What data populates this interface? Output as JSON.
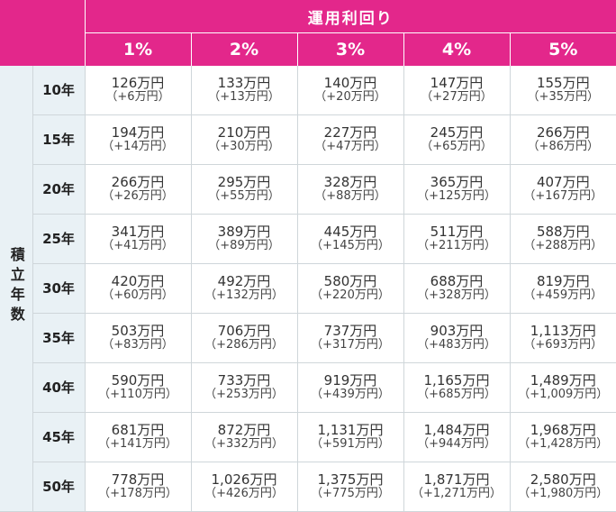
{
  "header": {
    "title": "運用利回り",
    "rates": [
      "1%",
      "2%",
      "3%",
      "4%",
      "5%"
    ]
  },
  "side_label": "積立年数",
  "rows": [
    {
      "year": "10年",
      "cells": [
        {
          "amount": "126万円",
          "gain": "（+6万円）"
        },
        {
          "amount": "133万円",
          "gain": "（+13万円）"
        },
        {
          "amount": "140万円",
          "gain": "（+20万円）"
        },
        {
          "amount": "147万円",
          "gain": "（+27万円）"
        },
        {
          "amount": "155万円",
          "gain": "（+35万円）"
        }
      ]
    },
    {
      "year": "15年",
      "cells": [
        {
          "amount": "194万円",
          "gain": "（+14万円）"
        },
        {
          "amount": "210万円",
          "gain": "（+30万円）"
        },
        {
          "amount": "227万円",
          "gain": "（+47万円）"
        },
        {
          "amount": "245万円",
          "gain": "（+65万円）"
        },
        {
          "amount": "266万円",
          "gain": "（+86万円）"
        }
      ]
    },
    {
      "year": "20年",
      "cells": [
        {
          "amount": "266万円",
          "gain": "（+26万円）"
        },
        {
          "amount": "295万円",
          "gain": "（+55万円）"
        },
        {
          "amount": "328万円",
          "gain": "（+88万円）"
        },
        {
          "amount": "365万円",
          "gain": "（+125万円）"
        },
        {
          "amount": "407万円",
          "gain": "（+167万円）"
        }
      ]
    },
    {
      "year": "25年",
      "cells": [
        {
          "amount": "341万円",
          "gain": "（+41万円）"
        },
        {
          "amount": "389万円",
          "gain": "（+89万円）"
        },
        {
          "amount": "445万円",
          "gain": "（+145万円）"
        },
        {
          "amount": "511万円",
          "gain": "（+211万円）"
        },
        {
          "amount": "588万円",
          "gain": "（+288万円）"
        }
      ]
    },
    {
      "year": "30年",
      "cells": [
        {
          "amount": "420万円",
          "gain": "（+60万円）"
        },
        {
          "amount": "492万円",
          "gain": "（+132万円）"
        },
        {
          "amount": "580万円",
          "gain": "（+220万円）"
        },
        {
          "amount": "688万円",
          "gain": "（+328万円）"
        },
        {
          "amount": "819万円",
          "gain": "（+459万円）"
        }
      ]
    },
    {
      "year": "35年",
      "cells": [
        {
          "amount": "503万円",
          "gain": "（+83万円）"
        },
        {
          "amount": "706万円",
          "gain": "（+286万円）"
        },
        {
          "amount": "737万円",
          "gain": "（+317万円）"
        },
        {
          "amount": "903万円",
          "gain": "（+483万円）"
        },
        {
          "amount": "1,113万円",
          "gain": "（+693万円）"
        }
      ]
    },
    {
      "year": "40年",
      "cells": [
        {
          "amount": "590万円",
          "gain": "（+110万円）"
        },
        {
          "amount": "733万円",
          "gain": "（+253万円）"
        },
        {
          "amount": "919万円",
          "gain": "（+439万円）"
        },
        {
          "amount": "1,165万円",
          "gain": "（+685万円）"
        },
        {
          "amount": "1,489万円",
          "gain": "（+1,009万円）"
        }
      ]
    },
    {
      "year": "45年",
      "cells": [
        {
          "amount": "681万円",
          "gain": "（+141万円）"
        },
        {
          "amount": "872万円",
          "gain": "（+332万円）"
        },
        {
          "amount": "1,131万円",
          "gain": "（+591万円）"
        },
        {
          "amount": "1,484万円",
          "gain": "（+944万円）"
        },
        {
          "amount": "1,968万円",
          "gain": "（+1,428万円）"
        }
      ]
    },
    {
      "year": "50年",
      "cells": [
        {
          "amount": "778万円",
          "gain": "（+178万円）"
        },
        {
          "amount": "1,026万円",
          "gain": "（+426万円）"
        },
        {
          "amount": "1,375万円",
          "gain": "（+775万円）"
        },
        {
          "amount": "1,871万円",
          "gain": "（+1,271万円）"
        },
        {
          "amount": "2,580万円",
          "gain": "（+1,980万円）"
        }
      ]
    }
  ],
  "colors": {
    "header_bg": "#e3278b",
    "header_text": "#ffffff",
    "side_bg": "#e9f1f5",
    "border": "#cfd6da"
  }
}
